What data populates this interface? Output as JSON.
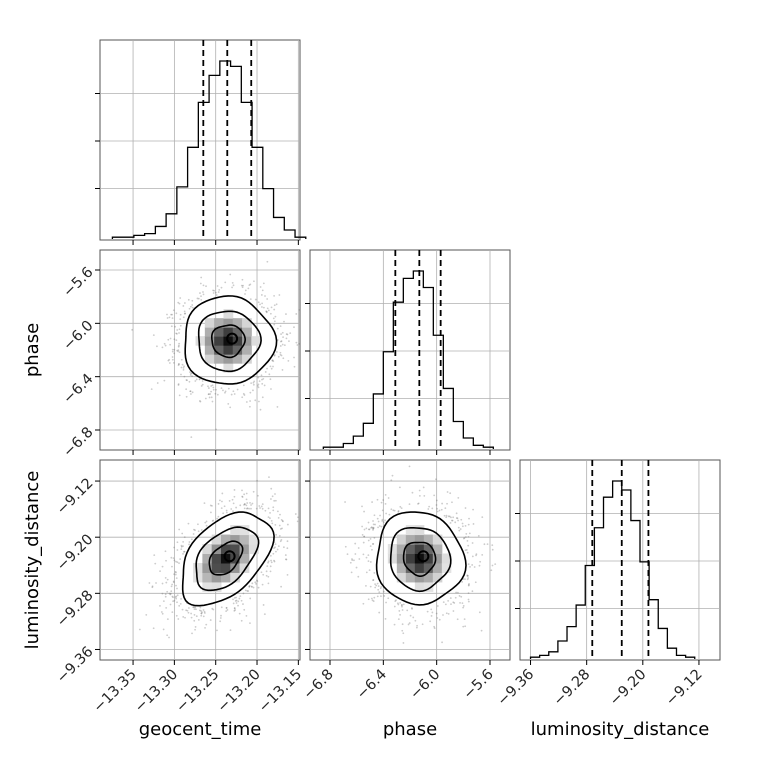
{
  "chart_data": {
    "type": "corner",
    "parameters": [
      "geocent_time",
      "phase",
      "luminosity_distance"
    ],
    "axis_labels": {
      "bottom": [
        "geocent_time",
        "phase",
        "luminosity_distance"
      ],
      "left": [
        "phase",
        "luminosity_distance"
      ]
    },
    "ranges": {
      "geocent_time": [
        -13.39,
        -13.148
      ],
      "phase": [
        -6.95,
        -5.45
      ],
      "luminosity_distance": [
        -9.375,
        -9.09
      ]
    },
    "ticks": {
      "geocent_time": [
        -13.35,
        -13.3,
        -13.25,
        -13.2,
        -13.15
      ],
      "phase": [
        -6.8,
        -6.4,
        -6.0,
        -5.6
      ],
      "luminosity_distance": [
        -9.36,
        -9.28,
        -9.2,
        -9.12
      ]
    },
    "tick_labels": {
      "geocent_time": [
        "−13.35",
        "−13.30",
        "−13.25",
        "−13.20",
        "−13.15"
      ],
      "phase": [
        "−6.8",
        "−6.4",
        "−6.0",
        "−5.6"
      ],
      "luminosity_distance": [
        "−9.36",
        "−9.28",
        "−9.20",
        "−9.12"
      ]
    },
    "histograms": [
      {
        "param": "geocent_time",
        "bin_edges": [
          -13.375,
          -13.362,
          -13.349,
          -13.336,
          -13.323,
          -13.31,
          -13.297,
          -13.284,
          -13.271,
          -13.258,
          -13.245,
          -13.232,
          -13.219,
          -13.206,
          -13.193,
          -13.18,
          -13.167,
          -13.154
        ],
        "counts": [
          0.01,
          0.01,
          0.02,
          0.03,
          0.07,
          0.14,
          0.29,
          0.51,
          0.76,
          0.91,
          0.99,
          0.96,
          0.76,
          0.51,
          0.28,
          0.12,
          0.05,
          0.01
        ],
        "quantiles": [
          -13.265,
          -13.236,
          -13.207
        ]
      },
      {
        "param": "phase",
        "bin_edges": [
          -6.85,
          -6.775,
          -6.7,
          -6.625,
          -6.55,
          -6.475,
          -6.4,
          -6.325,
          -6.25,
          -6.175,
          -6.1,
          -6.025,
          -5.95,
          -5.875,
          -5.8,
          -5.725,
          -5.65,
          -5.575
        ],
        "counts": [
          0.01,
          0.01,
          0.03,
          0.07,
          0.14,
          0.3,
          0.53,
          0.8,
          0.93,
          0.97,
          0.88,
          0.62,
          0.33,
          0.15,
          0.06,
          0.02,
          0.01
        ],
        "quantiles": [
          -6.31,
          -6.13,
          -5.97
        ]
      },
      {
        "param": "luminosity_distance",
        "bin_edges": [
          -9.36,
          -9.347,
          -9.334,
          -9.321,
          -9.308,
          -9.295,
          -9.282,
          -9.269,
          -9.256,
          -9.243,
          -9.23,
          -9.217,
          -9.204,
          -9.191,
          -9.178,
          -9.165,
          -9.152,
          -9.139,
          -9.126
        ],
        "counts": [
          0.01,
          0.02,
          0.04,
          0.1,
          0.18,
          0.3,
          0.52,
          0.73,
          0.9,
          0.99,
          0.94,
          0.77,
          0.54,
          0.33,
          0.17,
          0.06,
          0.02,
          0.01
        ],
        "quantiles": [
          -9.272,
          -9.23,
          -9.192
        ]
      }
    ],
    "joint": [
      {
        "x": "geocent_time",
        "y": "phase",
        "center": [
          -13.235,
          -6.13
        ],
        "sigma": [
          0.025,
          0.15
        ],
        "rho": 0.0
      },
      {
        "x": "geocent_time",
        "y": "luminosity_distance",
        "center": [
          -13.238,
          -9.23
        ],
        "sigma": [
          0.025,
          0.03
        ],
        "rho": 0.45
      },
      {
        "x": "phase",
        "y": "luminosity_distance",
        "center": [
          -6.13,
          -9.23
        ],
        "sigma": [
          0.15,
          0.03
        ],
        "rho": -0.05
      }
    ],
    "contour_levels_sigma": [
      0.8,
      1.5,
      2.2
    ],
    "grid": true,
    "quantile_line_style": "dashed",
    "colors": {
      "line": "#000000",
      "grid": "#b0b0b0",
      "points": "#6e6e6e"
    }
  }
}
